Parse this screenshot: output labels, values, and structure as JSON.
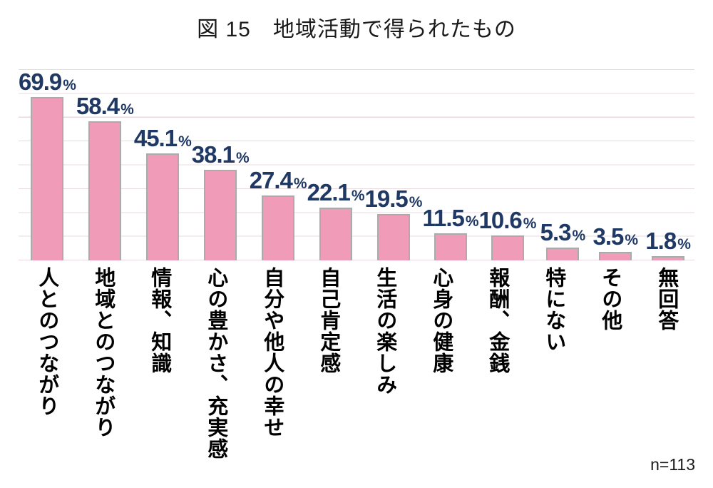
{
  "chart_data": {
    "type": "bar",
    "title": "図 15　地域活動で得られたもの",
    "categories": [
      "人とのつながり",
      "地域とのつながり",
      "情報、知識",
      "心の豊かさ、充実感",
      "自分や他人の幸せ",
      "自己肯定感",
      "生活の楽しみ",
      "心身の健康",
      "報酬、金銭",
      "特にない",
      "その他",
      "無回答"
    ],
    "values": [
      69.9,
      58.4,
      45.1,
      38.1,
      27.4,
      22.1,
      19.5,
      11.5,
      10.6,
      5.3,
      3.5,
      1.8
    ],
    "unit": "%",
    "xlabel": "",
    "ylabel": "",
    "ylim": [
      0,
      80
    ],
    "gridline_interval": 10,
    "grid": true,
    "legend": false,
    "annotation": "n=113",
    "colors": {
      "bar_fill": "#F09CB9",
      "bar_border": "#ABABAB",
      "value_label": "#1F3864",
      "gridline": "#EADADD",
      "category_label": "#000000",
      "title": "#1A1A1A"
    }
  }
}
